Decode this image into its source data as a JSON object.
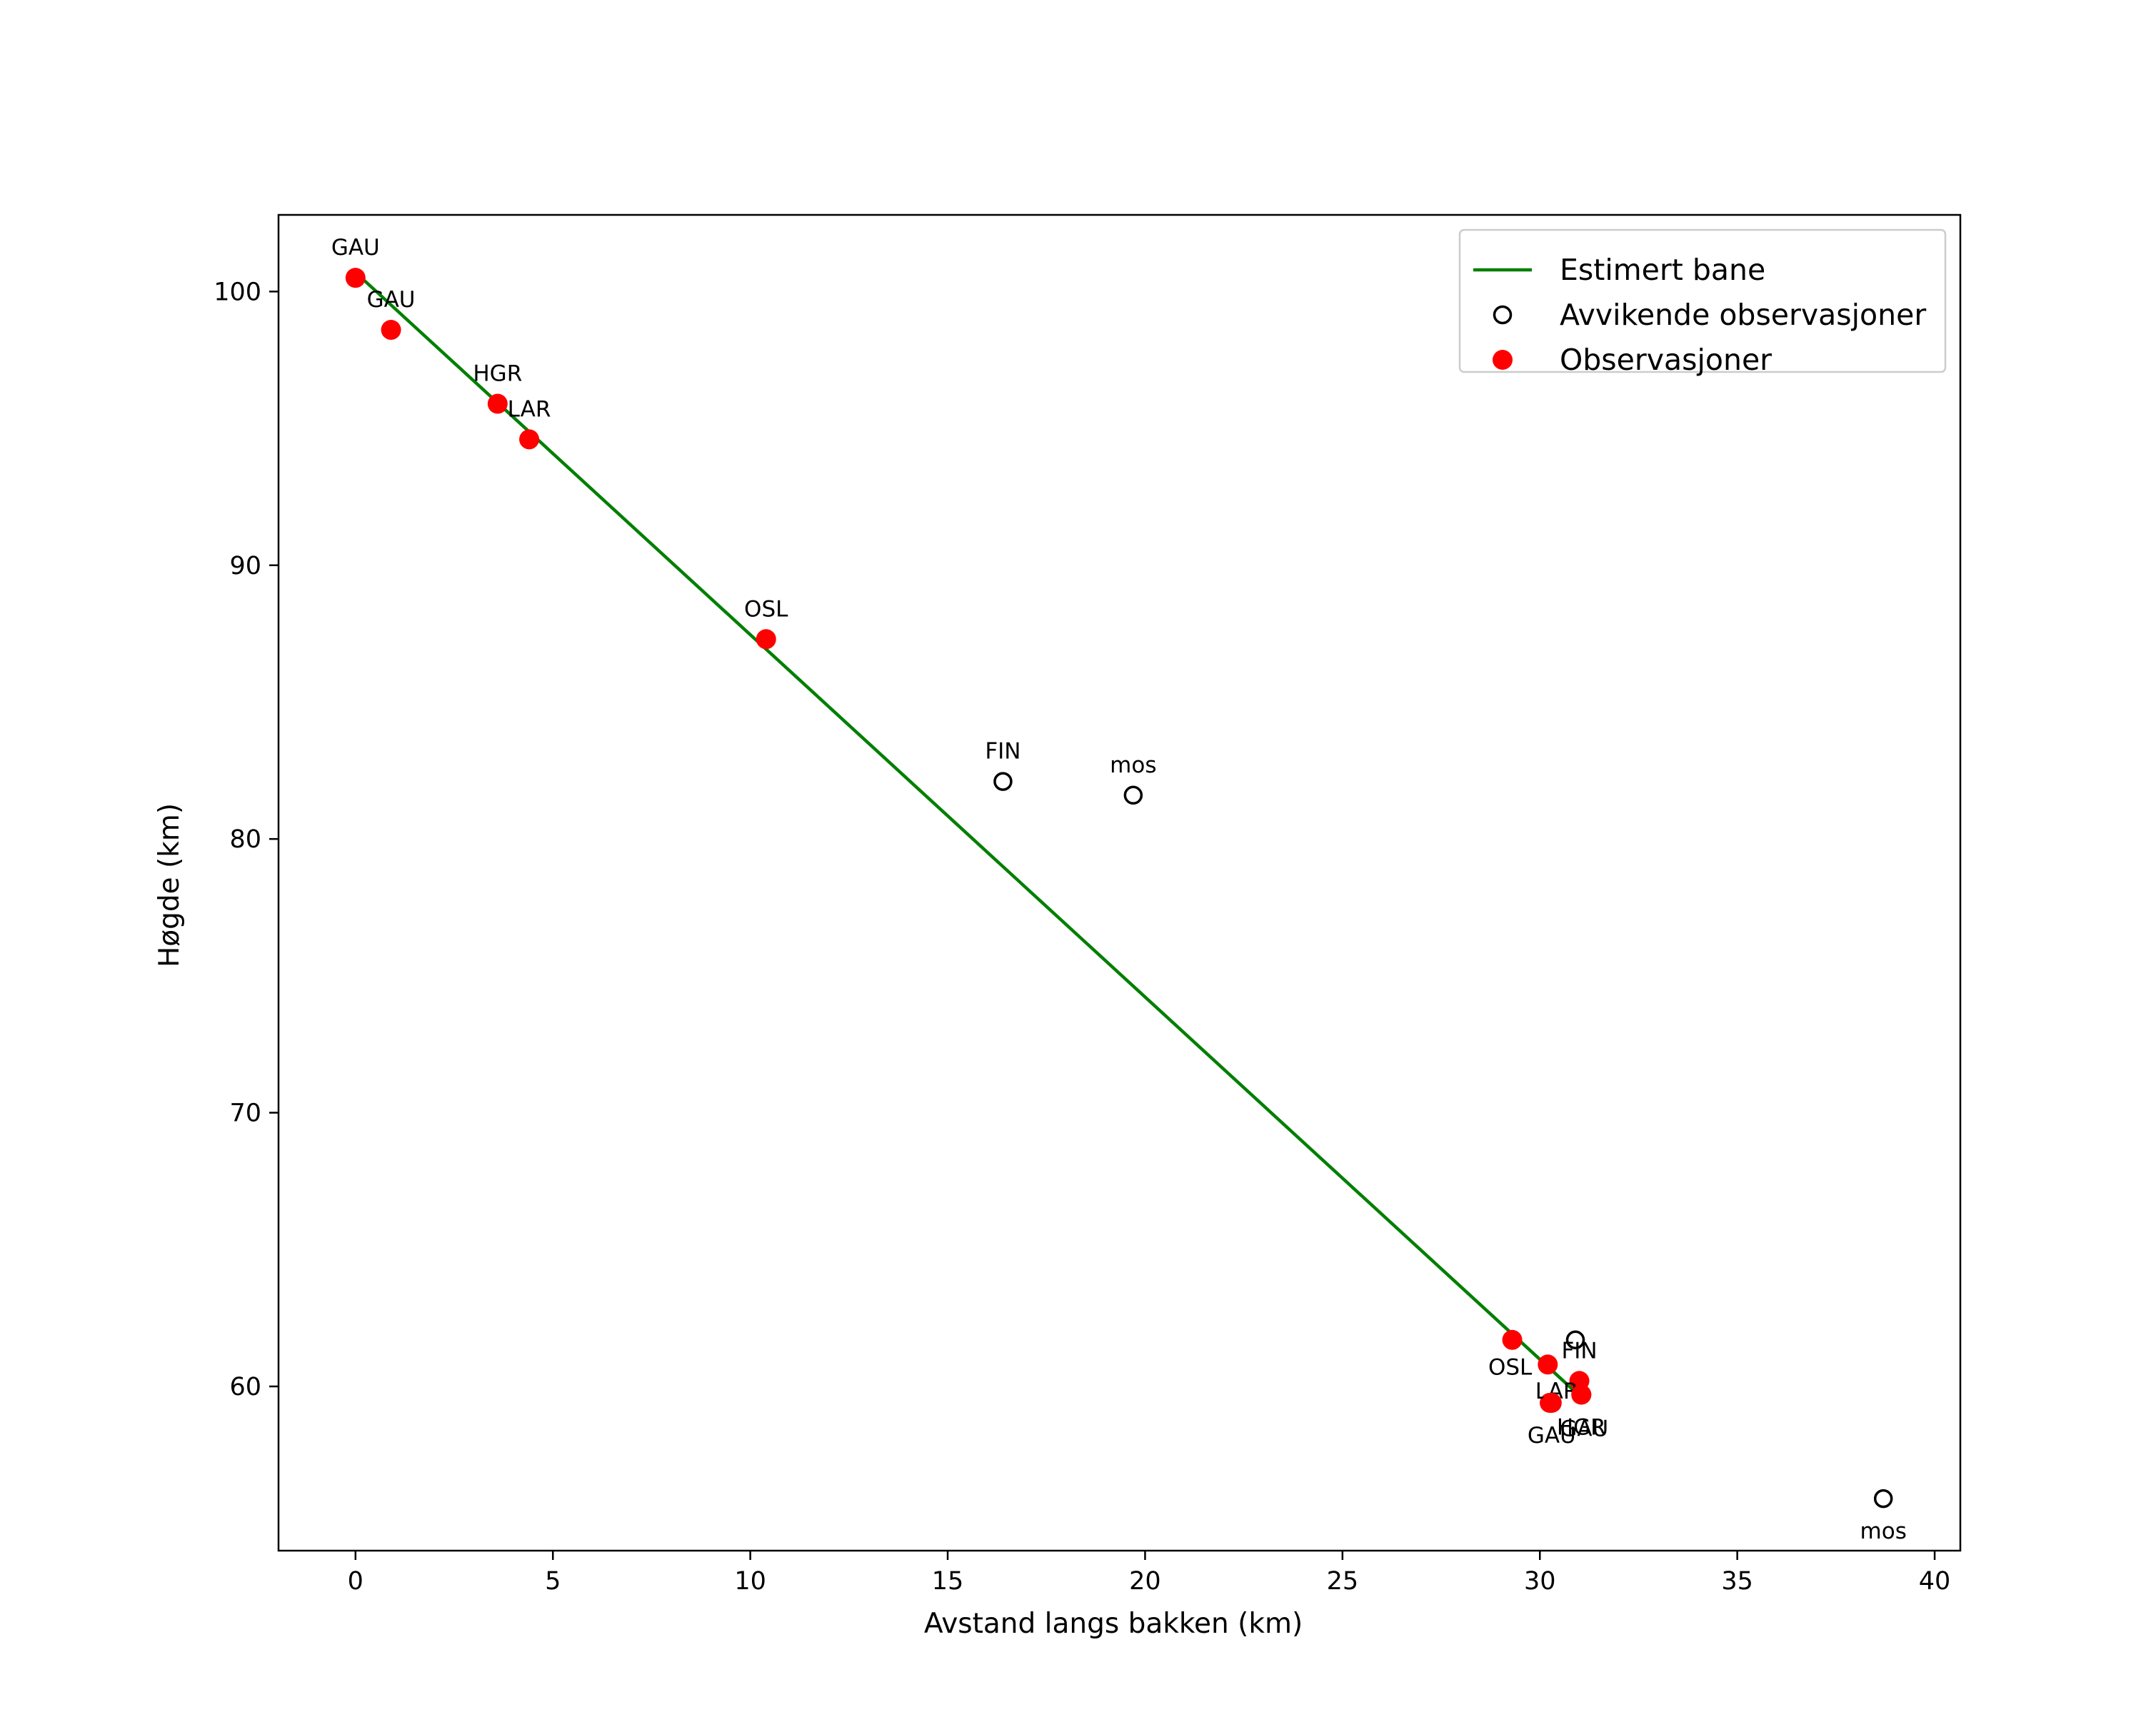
{
  "chart_data": {
    "type": "line+scatter",
    "title": "",
    "xlabel": "Avstand langs bakken (km)",
    "ylabel": "Høgde (km)",
    "xlim": [
      -1.95,
      40.65
    ],
    "ylim": [
      54.0,
      102.8
    ],
    "xticks": [
      0,
      5,
      10,
      15,
      20,
      25,
      30,
      35,
      40
    ],
    "yticks": [
      60,
      70,
      80,
      90,
      100
    ],
    "legend_position": "top-right",
    "colors": {
      "line": "#007f00",
      "observed": "#ff0000",
      "outlier_edge": "#000000"
    },
    "series": [
      {
        "name": "Estimert bane",
        "kind": "line",
        "points": [
          [
            0.0,
            100.7
          ],
          [
            31.05,
            59.6
          ]
        ]
      },
      {
        "name": "Avvikende observasjoner",
        "kind": "scatter-open",
        "points": [
          {
            "x": 16.4,
            "y": 82.1,
            "label": "FIN",
            "label_pos": "above"
          },
          {
            "x": 19.7,
            "y": 81.6,
            "label": "mos",
            "label_pos": "above"
          },
          {
            "x": 30.9,
            "y": 61.7,
            "label": "",
            "label_pos": "above"
          },
          {
            "x": 38.7,
            "y": 55.9,
            "label": "mos",
            "label_pos": "below"
          }
        ]
      },
      {
        "name": "Observasjoner",
        "kind": "scatter-filled",
        "points": [
          {
            "x": 0.0,
            "y": 100.5,
            "label": "GAU",
            "label_pos": "above"
          },
          {
            "x": 0.9,
            "y": 98.6,
            "label": "GAU",
            "label_pos": "above"
          },
          {
            "x": 3.6,
            "y": 95.9,
            "label": "HGR",
            "label_pos": "above"
          },
          {
            "x": 4.4,
            "y": 94.6,
            "label": "LAR",
            "label_pos": "above"
          },
          {
            "x": 10.4,
            "y": 87.3,
            "label": "OSL",
            "label_pos": "above"
          },
          {
            "x": 29.3,
            "y": 61.7,
            "label": "",
            "label_pos": "below"
          },
          {
            "x": 30.2,
            "y": 60.8,
            "label": "OSL",
            "label_pos": "below-left"
          },
          {
            "x": 31.0,
            "y": 60.2,
            "label": "FIN",
            "label_pos": "above"
          },
          {
            "x": 30.25,
            "y": 59.4,
            "label": "LAR",
            "label_pos": "above-left"
          },
          {
            "x": 31.05,
            "y": 59.7,
            "label": "HGR",
            "label_pos": "below"
          },
          {
            "x": 30.3,
            "y": 59.4,
            "label": "GAU",
            "label_pos": "below"
          },
          {
            "x": 31.05,
            "y": 59.7,
            "label": "GAU",
            "label_pos": "below-more"
          }
        ]
      }
    ]
  }
}
